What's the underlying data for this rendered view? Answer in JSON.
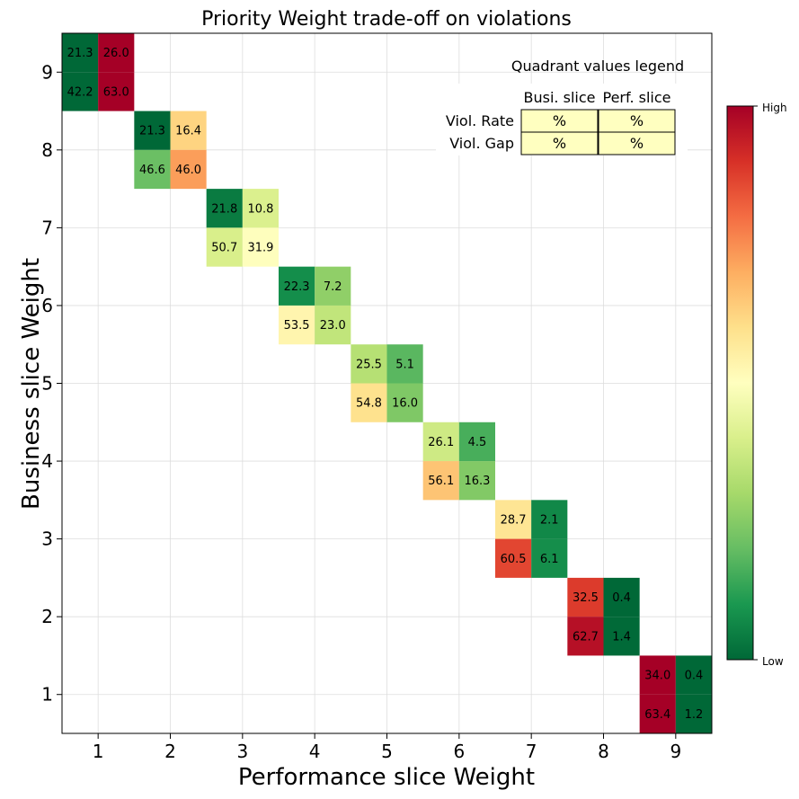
{
  "chart_data": {
    "type": "heatmap",
    "title": "Priority Weight trade-off on violations",
    "xlabel": "Performance slice Weight",
    "ylabel": "Business slice Weight",
    "x_ticks": [
      "1",
      "2",
      "3",
      "4",
      "5",
      "6",
      "7",
      "8",
      "9"
    ],
    "y_ticks": [
      "1",
      "2",
      "3",
      "4",
      "5",
      "6",
      "7",
      "8",
      "9"
    ],
    "xlim": [
      0.5,
      9.5
    ],
    "ylim": [
      0.5,
      9.5
    ],
    "grid": true,
    "cells": [
      {
        "perf_weight": 1,
        "bus_weight": 9,
        "busi_viol_rate": 21.3,
        "perf_viol_rate": 26.0,
        "busi_viol_gap": 42.2,
        "perf_viol_gap": 63.0
      },
      {
        "perf_weight": 2,
        "bus_weight": 8,
        "busi_viol_rate": 21.3,
        "perf_viol_rate": 16.4,
        "busi_viol_gap": 46.6,
        "perf_viol_gap": 46.0
      },
      {
        "perf_weight": 3,
        "bus_weight": 7,
        "busi_viol_rate": 21.8,
        "perf_viol_rate": 10.8,
        "busi_viol_gap": 50.7,
        "perf_viol_gap": 31.9
      },
      {
        "perf_weight": 4,
        "bus_weight": 6,
        "busi_viol_rate": 22.3,
        "perf_viol_rate": 7.2,
        "busi_viol_gap": 53.5,
        "perf_viol_gap": 23.0
      },
      {
        "perf_weight": 5,
        "bus_weight": 5,
        "busi_viol_rate": 25.5,
        "perf_viol_rate": 5.1,
        "busi_viol_gap": 54.8,
        "perf_viol_gap": 16.0
      },
      {
        "perf_weight": 6,
        "bus_weight": 4,
        "busi_viol_rate": 26.1,
        "perf_viol_rate": 4.5,
        "busi_viol_gap": 56.1,
        "perf_viol_gap": 16.3
      },
      {
        "perf_weight": 7,
        "bus_weight": 3,
        "busi_viol_rate": 28.7,
        "perf_viol_rate": 2.1,
        "busi_viol_gap": 60.5,
        "perf_viol_gap": 6.1
      },
      {
        "perf_weight": 8,
        "bus_weight": 2,
        "busi_viol_rate": 32.5,
        "perf_viol_rate": 0.4,
        "busi_viol_gap": 62.7,
        "perf_viol_gap": 1.4
      },
      {
        "perf_weight": 9,
        "bus_weight": 1,
        "busi_viol_rate": 34.0,
        "perf_viol_rate": 0.4,
        "busi_viol_gap": 63.4,
        "perf_viol_gap": 1.2
      }
    ],
    "colormap": "RdYlGn_r",
    "color_stops": [
      "#006837",
      "#1a9850",
      "#66bd63",
      "#a6d96a",
      "#d9ef8b",
      "#ffffbf",
      "#fee08b",
      "#fdae61",
      "#f46d43",
      "#d73027",
      "#a50026"
    ],
    "colorbar": {
      "high_label": "High",
      "low_label": "Low"
    },
    "quadrant_legend": {
      "title": "Quadrant values legend",
      "col_headers": [
        "Busi. slice",
        "Perf. slice"
      ],
      "row_headers": [
        "Viol. Rate",
        "Viol. Gap"
      ],
      "cell_text": "%",
      "cell_color": "#ffffc0"
    }
  }
}
